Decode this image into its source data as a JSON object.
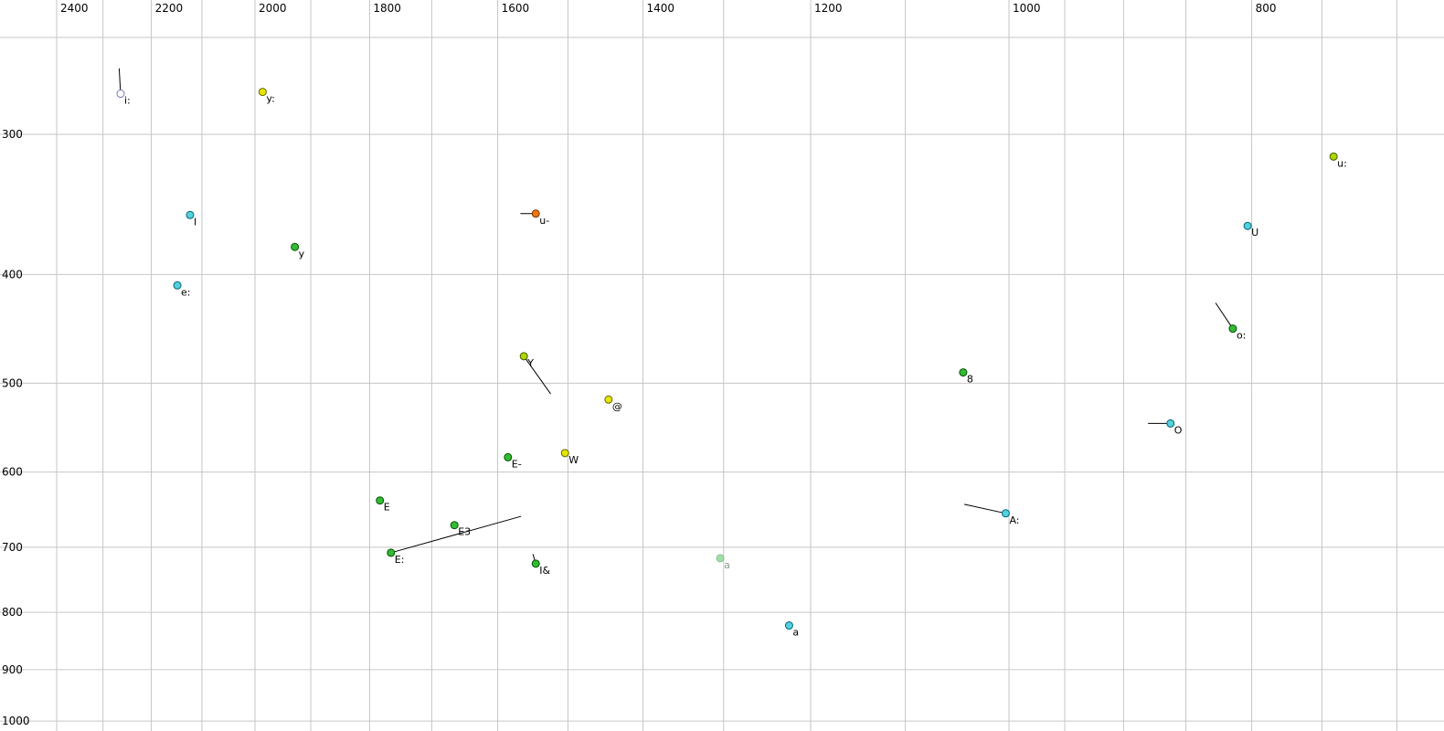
{
  "chart_data": {
    "type": "scatter",
    "title": "",
    "description": "Vowel formant plot: F2 (Hz) on reversed log-scaled top axis, F1 (Hz) on log-scaled left axis increasing downward; points labeled with X-SAMPA vowel symbols, some with trajectory tails",
    "x_axis": {
      "unit": "Hz",
      "position": "top",
      "scale": "log",
      "reversed": true,
      "ticks": [
        2400,
        2200,
        2000,
        1800,
        1600,
        1400,
        1200,
        1000,
        800
      ],
      "min": 675,
      "max": 2530
    },
    "y_axis": {
      "unit": "Hz",
      "position": "left",
      "scale": "log",
      "increases_downward": true,
      "ticks": [
        300,
        400,
        500,
        600,
        700,
        800,
        900,
        1000
      ],
      "min": 250,
      "max": 1010
    },
    "grid": {
      "x_values": [
        2400,
        2300,
        2200,
        2100,
        2000,
        1900,
        1800,
        1700,
        1600,
        1500,
        1400,
        1300,
        1200,
        1100,
        1000,
        950,
        900,
        850,
        800,
        750,
        700
      ],
      "y_values": [
        300,
        400,
        500,
        600,
        700,
        800,
        900,
        1000
      ]
    },
    "series": [
      {
        "label": "i:",
        "f2": 2263,
        "f1": 276,
        "color": "#ffffff",
        "stroke": "#7777bb",
        "tail": {
          "f2": 2266,
          "f1": 262
        }
      },
      {
        "label": "y:",
        "f2": 1986,
        "f1": 275,
        "color": "#e8e400",
        "stroke": "#666600"
      },
      {
        "label": "u:",
        "f2": 742,
        "f1": 314,
        "color": "#abd600",
        "stroke": "#4a5a00"
      },
      {
        "label": "I",
        "f2": 2123,
        "f1": 354,
        "color": "#55d0dd",
        "stroke": "#006677"
      },
      {
        "label": "u-",
        "f2": 1545,
        "f1": 353,
        "color": "#ee7711",
        "stroke": "#773300",
        "tail": {
          "f2": 1567,
          "f1": 353
        }
      },
      {
        "label": "U",
        "f2": 803,
        "f1": 362,
        "color": "#55d0dd",
        "stroke": "#006677"
      },
      {
        "label": "y",
        "f2": 1928,
        "f1": 378,
        "color": "#33bb33",
        "stroke": "#005500"
      },
      {
        "label": "e:",
        "f2": 2148,
        "f1": 409,
        "color": "#55d0dd",
        "stroke": "#006677"
      },
      {
        "label": "o:",
        "f2": 814,
        "f1": 447,
        "color": "#33bb33",
        "stroke": "#005500",
        "tail": {
          "f2": 827,
          "f1": 424
        }
      },
      {
        "label": "Y",
        "f2": 1562,
        "f1": 473,
        "color": "#abd600",
        "stroke": "#4a5a00",
        "tail": {
          "f2": 1524,
          "f1": 511
        }
      },
      {
        "label": "8",
        "f2": 1043,
        "f1": 489,
        "color": "#33bb33",
        "stroke": "#005500"
      },
      {
        "label": "@",
        "f2": 1445,
        "f1": 517,
        "color": "#e8e400",
        "stroke": "#666600"
      },
      {
        "label": "O",
        "f2": 862,
        "f1": 543,
        "color": "#55d0dd",
        "stroke": "#006677",
        "tail": {
          "f2": 880,
          "f1": 543
        }
      },
      {
        "label": "E-",
        "f2": 1585,
        "f1": 582,
        "color": "#33bb33",
        "stroke": "#005500"
      },
      {
        "label": "W",
        "f2": 1504,
        "f1": 577,
        "color": "#e8e400",
        "stroke": "#666600"
      },
      {
        "label": "E",
        "f2": 1783,
        "f1": 636,
        "color": "#33bb33",
        "stroke": "#005500"
      },
      {
        "label": "A:",
        "f2": 1003,
        "f1": 653,
        "color": "#55d0dd",
        "stroke": "#006677",
        "tail": {
          "f2": 1042,
          "f1": 641
        }
      },
      {
        "label": "E3",
        "f2": 1665,
        "f1": 669,
        "color": "#33bb33",
        "stroke": "#005500"
      },
      {
        "label": "E:",
        "f2": 1765,
        "f1": 708,
        "color": "#33bb33",
        "stroke": "#005500",
        "tail": {
          "f2": 1566,
          "f1": 657
        }
      },
      {
        "label": "I&",
        "f2": 1545,
        "f1": 724,
        "color": "#33bb33",
        "stroke": "#005500",
        "tail": {
          "f2": 1549,
          "f1": 710
        }
      },
      {
        "label": "a",
        "f2": 1304,
        "f1": 716,
        "color": "#9fdfa8",
        "stroke": "#8fbf98",
        "label_color": "#8a9a8e"
      },
      {
        "label": "a",
        "f2": 1224,
        "f1": 822,
        "color": "#55d0dd",
        "stroke": "#006677"
      }
    ],
    "style": {
      "background": "#ffffff",
      "grid_color": "#c6c6c6",
      "tail_color": "#000000",
      "tick_label_color": "#000000",
      "point_label_color": "#000000",
      "point_radius": 4,
      "tick_font_size": 12,
      "point_label_font_size": 11
    }
  }
}
